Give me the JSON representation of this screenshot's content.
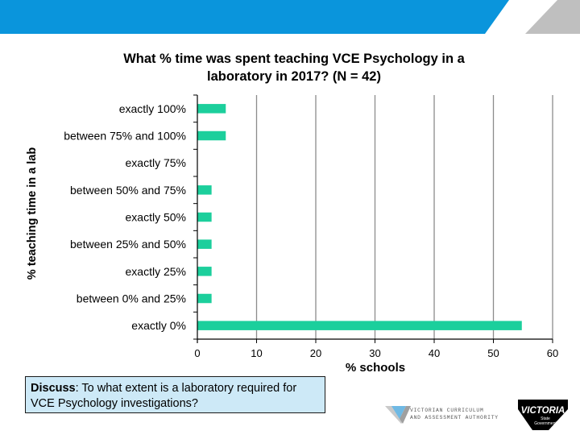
{
  "chart_data": {
    "type": "bar",
    "orientation": "horizontal",
    "title": "What % time was spent teaching VCE Psychology in a laboratory in 2017? (N = 42)",
    "title_lines": [
      "What % time was spent teaching VCE Psychology in a",
      "laboratory in 2017? (N = 42)"
    ],
    "xlabel": "% schools",
    "ylabel": "% teaching time in a lab",
    "categories": [
      "exactly 100%",
      "between 75% and 100%",
      "exactly 75%",
      "between 50% and 75%",
      "exactly 50%",
      "between 25% and 50%",
      "exactly 25%",
      "between 0% and 25%",
      "exactly 0%"
    ],
    "values": [
      4.8,
      4.8,
      0,
      2.4,
      2.4,
      2.4,
      2.4,
      2.4,
      54.8
    ],
    "xlim": [
      0,
      60
    ],
    "xticks": [
      "0",
      "10",
      "20",
      "30",
      "40",
      "50",
      "60"
    ],
    "grid": "vertical",
    "bar_color": "#1ccf9c"
  },
  "discuss": {
    "label": "Discuss",
    "text": ": To what extent is a laboratory required for VCE Psychology investigations?"
  },
  "logos": {
    "vcaa_line1": "VICTORIAN CURRICULUM",
    "vcaa_line2": "AND ASSESSMENT AUTHORITY",
    "victoria_name": "VICTORIA",
    "victoria_sub1": "State",
    "victoria_sub2": "Government"
  },
  "colors": {
    "header_blue": "#0a95dc",
    "header_gray": "#bfbfbf",
    "discuss_bg": "#cde9f7"
  }
}
